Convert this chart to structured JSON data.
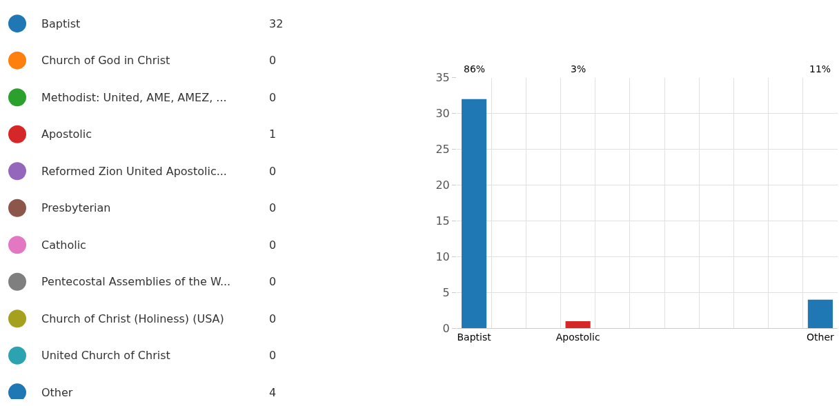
{
  "chart_data": [
    {
      "type": "other",
      "categories": [
        "Baptist",
        "Church of God in Christ",
        "Methodist: United, AME, AMEZ, ...",
        "Apostolic",
        "Reformed Zion United Apostolic...",
        "Presbyterian",
        "Catholic",
        "Pentecostal Assemblies of the W...",
        "Church of Christ (Holiness) (USA)",
        "United Church of Christ",
        "Other"
      ],
      "values": [
        32,
        0,
        0,
        1,
        0,
        0,
        0,
        0,
        0,
        0,
        4
      ],
      "colors": [
        "#1f77b4",
        "#ff7f0e",
        "#2ca02c",
        "#d62728",
        "#9467bd",
        "#8c564b",
        "#e377c2",
        "#7f7f7f",
        "#a5a01e",
        "#2ca3b0",
        "#1f77b4"
      ],
      "data_labels": true
    },
    {
      "type": "bar",
      "categories": [
        "Baptist",
        null,
        null,
        "Apostolic",
        null,
        null,
        null,
        null,
        null,
        null,
        "Other"
      ],
      "values": [
        32,
        0,
        0,
        1,
        0,
        0,
        0,
        0,
        0,
        0,
        4
      ],
      "colors": [
        "#1f77b4",
        "#ff7f0e",
        "#2ca02c",
        "#d62728",
        "#9467bd",
        "#8c564b",
        "#e377c2",
        "#7f7f7f",
        "#a5a01e",
        "#2ca3b0",
        "#1f77b4"
      ],
      "annotations": [
        "86%",
        "3%",
        "11%"
      ],
      "ylim": [
        0,
        35
      ],
      "yticks": [
        0,
        5,
        10,
        15,
        20,
        25,
        30,
        35
      ],
      "grid": true
    }
  ]
}
